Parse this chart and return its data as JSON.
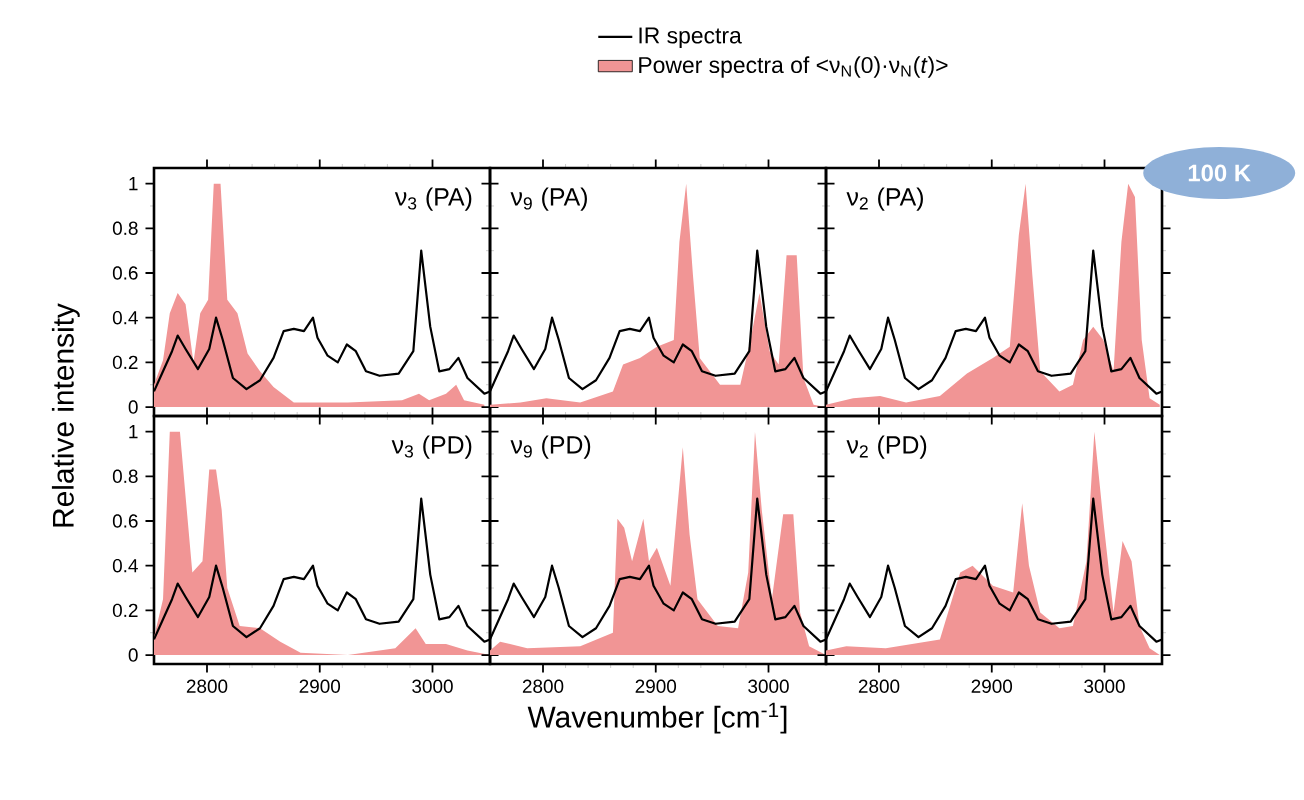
{
  "chart_data": [
    {
      "type": "area",
      "ylabel": "Relative intensity",
      "legend": "top",
      "annotations": [
        "ν$_{3}$ (PA)"
      ],
      "xlim": [
        2753,
        3051
      ],
      "ylim": [
        -0.04,
        1.07
      ],
      "xticks": [
        2800,
        2900,
        3000
      ],
      "yticks": [
        0,
        0.2,
        0.4,
        0.6,
        0.8,
        1
      ],
      "tick_labels": "y",
      "series": [
        {
          "name": "IR spectra",
          "type": "line",
          "color": "#000000",
          "x": [
            2753,
            2761,
            2769,
            2774,
            2781,
            2792,
            2802,
            2808,
            2814,
            2823,
            2835,
            2847,
            2859,
            2868,
            2877,
            2886,
            2894,
            2898,
            2907,
            2916,
            2924,
            2932,
            2941,
            2953,
            2970,
            2983,
            2990,
            2998,
            3006,
            3015,
            3023,
            3031,
            3046,
            3051
          ],
          "values": [
            0.07,
            0.16,
            0.25,
            0.32,
            0.26,
            0.17,
            0.26,
            0.4,
            0.3,
            0.13,
            0.08,
            0.12,
            0.22,
            0.34,
            0.35,
            0.34,
            0.4,
            0.31,
            0.23,
            0.2,
            0.28,
            0.25,
            0.16,
            0.14,
            0.15,
            0.25,
            0.7,
            0.36,
            0.16,
            0.17,
            0.22,
            0.13,
            0.06,
            0.07
          ]
        },
        {
          "name": "Power spectra of <ν$_{N}$(0)·ν$_{N}$(*t*)>",
          "color": "#f19595",
          "x": [
            2753,
            2761,
            2767,
            2774,
            2781,
            2788,
            2794,
            2801,
            2806,
            2812,
            2818,
            2827,
            2836,
            2847,
            2859,
            2877,
            2925,
            2973,
            2988,
            2997,
            3012,
            3021,
            3028,
            3046
          ],
          "values": [
            0.1,
            0.21,
            0.42,
            0.51,
            0.46,
            0.2,
            0.42,
            0.48,
            1.0,
            1.0,
            0.48,
            0.42,
            0.24,
            0.16,
            0.09,
            0.02,
            0.02,
            0.03,
            0.06,
            0.03,
            0.06,
            0.1,
            0.03,
            0.01
          ]
        }
      ]
    },
    {
      "type": "area",
      "annotations": [
        "ν$_{9}$ (PA)"
      ],
      "xlim": [
        2753,
        3051
      ],
      "ylim": [
        -0.04,
        1.07
      ],
      "xticks": [
        2800,
        2900,
        3000
      ],
      "yticks": [
        0,
        0.2,
        0.4,
        0.6,
        0.8,
        1
      ],
      "tick_labels": false,
      "series": [
        {
          "type": "line",
          "color": "#000000",
          "x": [
            2753,
            2761,
            2769,
            2774,
            2781,
            2792,
            2802,
            2808,
            2814,
            2823,
            2835,
            2847,
            2859,
            2868,
            2877,
            2886,
            2894,
            2898,
            2907,
            2916,
            2924,
            2932,
            2941,
            2953,
            2970,
            2983,
            2990,
            2998,
            3006,
            3015,
            3023,
            3031,
            3046,
            3051
          ],
          "values": [
            0.07,
            0.16,
            0.25,
            0.32,
            0.26,
            0.17,
            0.26,
            0.4,
            0.3,
            0.13,
            0.08,
            0.12,
            0.22,
            0.34,
            0.35,
            0.34,
            0.4,
            0.31,
            0.23,
            0.2,
            0.28,
            0.25,
            0.16,
            0.14,
            0.15,
            0.25,
            0.7,
            0.36,
            0.16,
            0.17,
            0.22,
            0.13,
            0.06,
            0.07
          ]
        },
        {
          "color": "#f19595",
          "x": [
            2753,
            2780,
            2803,
            2833,
            2862,
            2871,
            2886,
            2901,
            2916,
            2921,
            2927,
            2933,
            2939,
            2957,
            2975,
            2984,
            2992,
            3001,
            3009,
            3016,
            3025,
            3031,
            3040,
            3051
          ],
          "values": [
            0.01,
            0.02,
            0.04,
            0.02,
            0.07,
            0.19,
            0.22,
            0.27,
            0.3,
            0.74,
            1.0,
            0.59,
            0.22,
            0.1,
            0.1,
            0.3,
            0.51,
            0.25,
            0.19,
            0.68,
            0.68,
            0.13,
            0.01,
            0
          ]
        }
      ]
    },
    {
      "type": "area",
      "annotations": [
        "ν$_{2}$ (PA)",
        "100 K"
      ],
      "xlim": [
        2753,
        3051
      ],
      "ylim": [
        -0.04,
        1.07
      ],
      "xticks": [
        2800,
        2900,
        3000
      ],
      "yticks": [
        0,
        0.2,
        0.4,
        0.6,
        0.8,
        1
      ],
      "tick_labels": false,
      "series": [
        {
          "type": "line",
          "color": "#000000",
          "x": [
            2753,
            2761,
            2769,
            2774,
            2781,
            2792,
            2802,
            2808,
            2814,
            2823,
            2835,
            2847,
            2859,
            2868,
            2877,
            2886,
            2894,
            2898,
            2907,
            2916,
            2924,
            2932,
            2941,
            2953,
            2970,
            2983,
            2990,
            2998,
            3006,
            3015,
            3023,
            3031,
            3046,
            3051
          ],
          "values": [
            0.07,
            0.16,
            0.25,
            0.32,
            0.26,
            0.17,
            0.26,
            0.4,
            0.3,
            0.13,
            0.08,
            0.12,
            0.22,
            0.34,
            0.35,
            0.34,
            0.4,
            0.31,
            0.23,
            0.2,
            0.28,
            0.25,
            0.16,
            0.14,
            0.15,
            0.25,
            0.7,
            0.36,
            0.16,
            0.17,
            0.22,
            0.13,
            0.06,
            0.07
          ]
        },
        {
          "color": "#f19595",
          "x": [
            2753,
            2777,
            2801,
            2824,
            2854,
            2878,
            2901,
            2916,
            2924,
            2930,
            2936,
            2943,
            2960,
            2972,
            2981,
            2990,
            2999,
            3008,
            3015,
            3021,
            3027,
            3033,
            3040,
            3049
          ],
          "values": [
            0.01,
            0.04,
            0.05,
            0.02,
            0.05,
            0.15,
            0.22,
            0.27,
            0.77,
            1.0,
            0.59,
            0.16,
            0.07,
            0.1,
            0.3,
            0.36,
            0.3,
            0.16,
            0.74,
            1.0,
            0.94,
            0.3,
            0.04,
            0.01
          ]
        }
      ]
    },
    {
      "type": "area",
      "annotations": [
        "ν$_{3}$ (PD)"
      ],
      "xlim": [
        2753,
        3051
      ],
      "ylim": [
        -0.04,
        1.07
      ],
      "xticks": [
        2800,
        2900,
        3000
      ],
      "yticks": [
        0,
        0.2,
        0.4,
        0.6,
        0.8,
        1
      ],
      "series": [
        {
          "type": "line",
          "color": "#000000",
          "x": [
            2753,
            2761,
            2769,
            2774,
            2781,
            2792,
            2802,
            2808,
            2814,
            2823,
            2835,
            2847,
            2859,
            2868,
            2877,
            2886,
            2894,
            2898,
            2907,
            2916,
            2924,
            2932,
            2941,
            2953,
            2970,
            2983,
            2990,
            2998,
            3006,
            3015,
            3023,
            3031,
            3046,
            3051
          ],
          "values": [
            0.07,
            0.16,
            0.25,
            0.32,
            0.26,
            0.17,
            0.26,
            0.4,
            0.3,
            0.13,
            0.08,
            0.12,
            0.22,
            0.34,
            0.35,
            0.34,
            0.4,
            0.31,
            0.23,
            0.2,
            0.28,
            0.25,
            0.16,
            0.14,
            0.15,
            0.25,
            0.7,
            0.36,
            0.16,
            0.17,
            0.22,
            0.13,
            0.06,
            0.07
          ]
        },
        {
          "color": "#f19595",
          "x": [
            2753,
            2761,
            2767,
            2776,
            2781,
            2787,
            2796,
            2802,
            2808,
            2813,
            2818,
            2829,
            2847,
            2865,
            2883,
            2925,
            2967,
            2985,
            2994,
            3012,
            3031,
            3051
          ],
          "values": [
            0.08,
            0.25,
            1.0,
            1.0,
            0.71,
            0.37,
            0.42,
            0.83,
            0.83,
            0.65,
            0.3,
            0.13,
            0.12,
            0.06,
            0.01,
            0,
            0.03,
            0.12,
            0.05,
            0.05,
            0.02,
            0
          ]
        }
      ]
    },
    {
      "type": "area",
      "xlabel": "Wavenumber [cm$^{-1}$]",
      "annotations": [
        "ν$_{9}$ (PD)"
      ],
      "xlim": [
        2753,
        3051
      ],
      "ylim": [
        -0.04,
        1.07
      ],
      "xticks": [
        2800,
        2900,
        3000
      ],
      "yticks": [
        0,
        0.2,
        0.4,
        0.6,
        0.8,
        1
      ],
      "tick_labels": "x",
      "series": [
        {
          "type": "line",
          "color": "#000000",
          "x": [
            2753,
            2761,
            2769,
            2774,
            2781,
            2792,
            2802,
            2808,
            2814,
            2823,
            2835,
            2847,
            2859,
            2868,
            2877,
            2886,
            2894,
            2898,
            2907,
            2916,
            2924,
            2932,
            2941,
            2953,
            2970,
            2983,
            2990,
            2998,
            3006,
            3015,
            3023,
            3031,
            3046,
            3051
          ],
          "values": [
            0.07,
            0.16,
            0.25,
            0.32,
            0.26,
            0.17,
            0.26,
            0.4,
            0.3,
            0.13,
            0.08,
            0.12,
            0.22,
            0.34,
            0.35,
            0.34,
            0.4,
            0.31,
            0.23,
            0.2,
            0.28,
            0.25,
            0.16,
            0.14,
            0.15,
            0.25,
            0.7,
            0.36,
            0.16,
            0.17,
            0.22,
            0.13,
            0.06,
            0.07
          ]
        },
        {
          "color": "#f19595",
          "x": [
            2753,
            2762,
            2786,
            2833,
            2862,
            2866,
            2872,
            2879,
            2889,
            2894,
            2901,
            2913,
            2919,
            2924,
            2930,
            2937,
            2955,
            2973,
            2982,
            2988,
            2994,
            3003,
            3013,
            3022,
            3028,
            3036,
            3051
          ],
          "values": [
            0.02,
            0.06,
            0.03,
            0.04,
            0.1,
            0.61,
            0.57,
            0.42,
            0.61,
            0.42,
            0.48,
            0.31,
            0.65,
            0.93,
            0.54,
            0.25,
            0.13,
            0.12,
            0.37,
            1.0,
            0.65,
            0.25,
            0.63,
            0.63,
            0.19,
            0.04,
            0
          ]
        }
      ]
    },
    {
      "type": "area",
      "annotations": [
        "ν$_{2}$ (PD)"
      ],
      "xlim": [
        2753,
        3051
      ],
      "ylim": [
        -0.04,
        1.07
      ],
      "xticks": [
        2800,
        2900,
        3000
      ],
      "yticks": [
        0,
        0.2,
        0.4,
        0.6,
        0.8,
        1
      ],
      "tick_labels": "x",
      "series": [
        {
          "type": "line",
          "color": "#000000",
          "x": [
            2753,
            2761,
            2769,
            2774,
            2781,
            2792,
            2802,
            2808,
            2814,
            2823,
            2835,
            2847,
            2859,
            2868,
            2877,
            2886,
            2894,
            2898,
            2907,
            2916,
            2924,
            2932,
            2941,
            2953,
            2970,
            2983,
            2990,
            2998,
            3006,
            3015,
            3023,
            3031,
            3046,
            3051
          ],
          "values": [
            0.07,
            0.16,
            0.25,
            0.32,
            0.26,
            0.17,
            0.26,
            0.4,
            0.3,
            0.13,
            0.08,
            0.12,
            0.22,
            0.34,
            0.35,
            0.34,
            0.4,
            0.31,
            0.23,
            0.2,
            0.28,
            0.25,
            0.16,
            0.14,
            0.15,
            0.25,
            0.7,
            0.36,
            0.16,
            0.17,
            0.22,
            0.13,
            0.06,
            0.07
          ]
        },
        {
          "color": "#f19595",
          "x": [
            2753,
            2771,
            2806,
            2854,
            2872,
            2883,
            2901,
            2919,
            2927,
            2933,
            2943,
            2960,
            2972,
            2984,
            2991,
            2999,
            3008,
            3016,
            3024,
            3031,
            3040,
            3049
          ],
          "values": [
            0.02,
            0.04,
            0.03,
            0.07,
            0.37,
            0.4,
            0.31,
            0.28,
            0.68,
            0.4,
            0.19,
            0.12,
            0.13,
            0.42,
            1.0,
            0.6,
            0.19,
            0.51,
            0.42,
            0.13,
            0.03,
            0
          ]
        }
      ]
    }
  ]
}
